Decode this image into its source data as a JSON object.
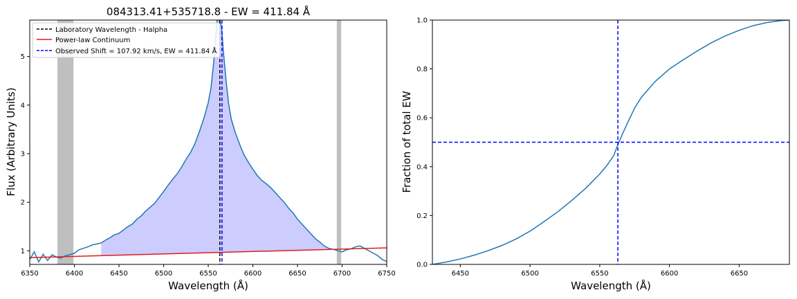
{
  "chart_data": [
    {
      "type": "line",
      "title": "084313.41+535718.8 - EW = 411.84 Å",
      "xlabel": "Wavelength (Å)",
      "ylabel": "Flux (Arbitrary Units)",
      "xlim": [
        6350,
        6750
      ],
      "ylim": [
        0.72,
        5.75
      ],
      "xticks": [
        6350,
        6400,
        6450,
        6500,
        6550,
        6600,
        6650,
        6700,
        6750
      ],
      "yticks": [
        1,
        2,
        3,
        4,
        5
      ],
      "grid": false,
      "legend_position": "top-left",
      "continuum_windows": [
        [
          6381,
          6399
        ],
        [
          6694,
          6699
        ]
      ],
      "fill_range": [
        6430,
        6686
      ],
      "fill_color": "#ccccff",
      "window_color": "#bfbfbf",
      "series": [
        {
          "name": "",
          "color": "#1f77b4",
          "x": [
            6350,
            6355,
            6360,
            6365,
            6370,
            6375,
            6380,
            6385,
            6390,
            6395,
            6400,
            6405,
            6410,
            6415,
            6420,
            6425,
            6430,
            6435,
            6440,
            6445,
            6450,
            6455,
            6460,
            6465,
            6470,
            6475,
            6480,
            6485,
            6490,
            6495,
            6500,
            6505,
            6510,
            6515,
            6520,
            6525,
            6530,
            6535,
            6540,
            6545,
            6550,
            6553,
            6556,
            6558,
            6560,
            6562,
            6563,
            6565,
            6567,
            6570,
            6573,
            6576,
            6580,
            6585,
            6590,
            6595,
            6600,
            6605,
            6610,
            6615,
            6620,
            6625,
            6630,
            6635,
            6640,
            6645,
            6650,
            6655,
            6660,
            6665,
            6670,
            6675,
            6680,
            6685,
            6690,
            6695,
            6700,
            6705,
            6710,
            6715,
            6720,
            6725,
            6730,
            6735,
            6740,
            6745,
            6750
          ],
          "values": [
            0.82,
            0.98,
            0.77,
            0.93,
            0.8,
            0.92,
            0.87,
            0.85,
            0.9,
            0.92,
            0.95,
            1.02,
            1.05,
            1.08,
            1.12,
            1.14,
            1.16,
            1.22,
            1.27,
            1.33,
            1.36,
            1.43,
            1.5,
            1.55,
            1.65,
            1.72,
            1.82,
            1.9,
            1.98,
            2.1,
            2.22,
            2.35,
            2.47,
            2.58,
            2.72,
            2.88,
            3.02,
            3.2,
            3.45,
            3.72,
            4.05,
            4.35,
            4.85,
            5.35,
            5.75,
            5.75,
            5.75,
            5.6,
            5.1,
            4.5,
            4.0,
            3.7,
            3.45,
            3.2,
            2.98,
            2.82,
            2.68,
            2.55,
            2.45,
            2.38,
            2.3,
            2.2,
            2.1,
            2.0,
            1.88,
            1.78,
            1.65,
            1.55,
            1.45,
            1.35,
            1.25,
            1.18,
            1.1,
            1.05,
            1.03,
            1.0,
            0.98,
            1.02,
            1.04,
            1.08,
            1.1,
            1.05,
            1.0,
            0.95,
            0.9,
            0.82,
            0.78
          ]
        },
        {
          "name": "Power-law Continuum",
          "color": "#e31a1c",
          "x": [
            6350,
            6750
          ],
          "values": [
            0.86,
            1.06
          ]
        }
      ],
      "vlines": [
        {
          "name": "Laboratory Wavelength - Halpha",
          "x": 6563,
          "color": "#000000",
          "style": "dashed"
        },
        {
          "name": "Observed Shift = 107.92 km/s, EW = 411.84 Å",
          "x": 6565.4,
          "color": "#0000ff",
          "style": "dashed"
        }
      ]
    },
    {
      "type": "line",
      "title": "",
      "xlabel": "Wavelength (Å)",
      "ylabel": "Fraction of total EW",
      "xlim": [
        6430,
        6686
      ],
      "ylim": [
        0.0,
        1.0
      ],
      "xticks": [
        6450,
        6500,
        6550,
        6600,
        6650
      ],
      "yticks": [
        0.0,
        0.2,
        0.4,
        0.6,
        0.8,
        1.0
      ],
      "yticklabels": [
        "0.0",
        "0.2",
        "0.4",
        "0.6",
        "0.8",
        "1.0"
      ],
      "grid": false,
      "series": [
        {
          "name": "",
          "color": "#1f77b4",
          "x": [
            6430,
            6440,
            6450,
            6460,
            6470,
            6480,
            6490,
            6500,
            6510,
            6520,
            6530,
            6540,
            6550,
            6555,
            6560,
            6563,
            6566,
            6570,
            6575,
            6580,
            6590,
            6600,
            6610,
            6620,
            6630,
            6640,
            6650,
            6660,
            6670,
            6680,
            6686
          ],
          "values": [
            0.0,
            0.01,
            0.022,
            0.038,
            0.056,
            0.078,
            0.104,
            0.136,
            0.175,
            0.216,
            0.262,
            0.312,
            0.37,
            0.404,
            0.445,
            0.49,
            0.53,
            0.58,
            0.64,
            0.685,
            0.75,
            0.8,
            0.838,
            0.874,
            0.907,
            0.935,
            0.958,
            0.977,
            0.99,
            0.998,
            1.0
          ]
        }
      ],
      "hlines": [
        {
          "y": 0.5,
          "color": "#0000ff",
          "style": "dashed"
        }
      ],
      "vlines": [
        {
          "x": 6563,
          "color": "#0000ff",
          "style": "dashed"
        }
      ]
    }
  ]
}
